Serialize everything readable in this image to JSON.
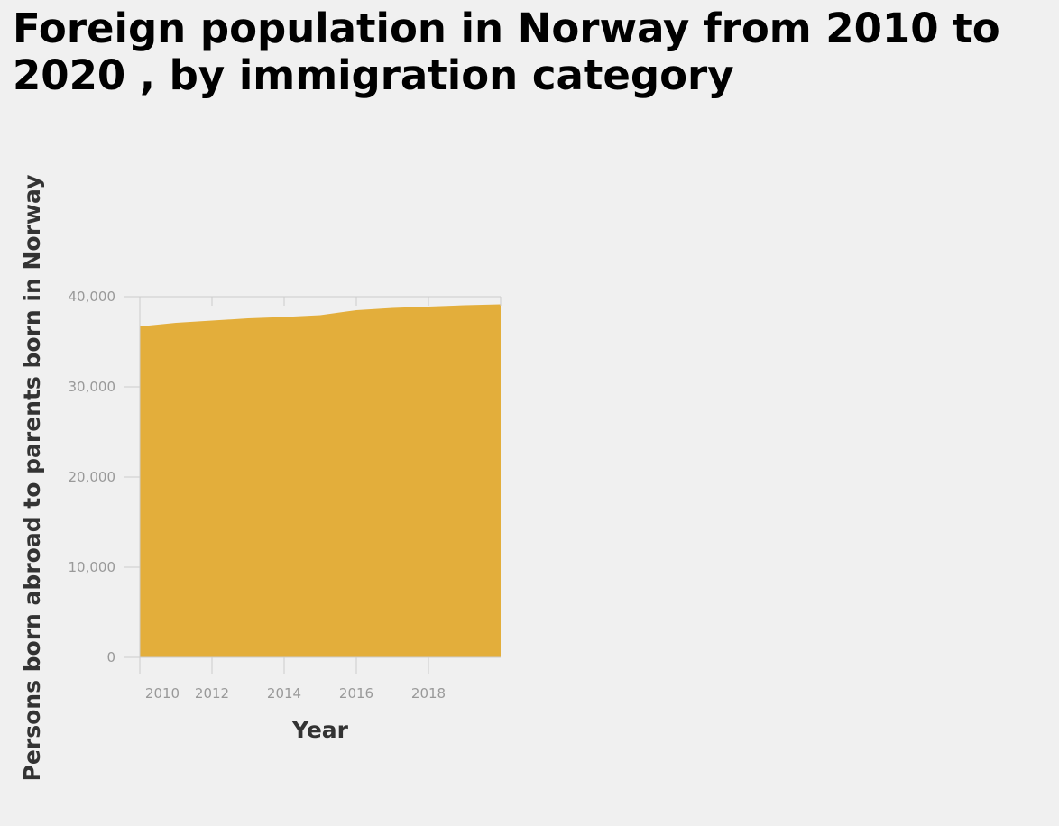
{
  "chart_data": {
    "type": "area",
    "title": "Foreign population in Norway from 2010 to 2020 , by immigration category",
    "xlabel": "Year",
    "ylabel": "Persons born abroad to parents born in Norway",
    "x": [
      2010,
      2011,
      2012,
      2013,
      2014,
      2015,
      2016,
      2017,
      2018,
      2019,
      2020
    ],
    "series": [
      {
        "values": [
          36700,
          37100,
          37350,
          37600,
          37750,
          37950,
          38500,
          38750,
          38900,
          39050,
          39150
        ]
      }
    ],
    "xticks": [
      "2010",
      "2012",
      "2014",
      "2016",
      "2018"
    ],
    "yticks": [
      "0",
      "10,000",
      "20,000",
      "30,000",
      "40,000"
    ],
    "xlim": [
      2010,
      2020
    ],
    "ylim": [
      0,
      40000
    ],
    "grid": false,
    "legend": "none",
    "colors": {
      "area": "#e3ae3b",
      "axis": "#cccccc",
      "tick_text": "#999999",
      "title_text": "#000000",
      "axis_title_text": "#333333"
    }
  }
}
